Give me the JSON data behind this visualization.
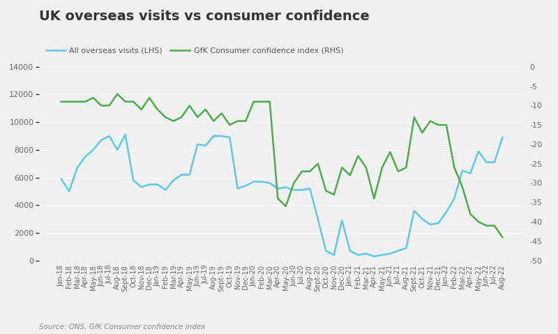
{
  "title": "UK overseas visits vs consumer confidence",
  "source": "Source: ONS, GfK Consumer confidence index",
  "legend_lhs": "All overseas visits (LHS)",
  "legend_rhs": "GfK Consumer confidence index (RHS)",
  "lhs_color": "#5bc8e8",
  "rhs_color": "#4aab4a",
  "background_color": "#f0f0f0",
  "ylim_lhs": [
    0,
    14000
  ],
  "ylim_rhs": [
    -50,
    0
  ],
  "yticks_lhs": [
    0,
    2000,
    4000,
    6000,
    8000,
    10000,
    12000,
    14000
  ],
  "yticks_rhs": [
    -50,
    -45,
    -40,
    -35,
    -30,
    -25,
    -20,
    -15,
    -10,
    -5,
    0
  ],
  "labels": [
    "Jan-18",
    "Feb-18",
    "Mar-18",
    "Apr-18",
    "May-18",
    "Jun-18",
    "Jul-18",
    "Aug-18",
    "Sept-18",
    "Oct-18",
    "Nov-18",
    "Dec-18",
    "Jan-19",
    "Feb-19",
    "Mar-19",
    "Apr-19",
    "May-19",
    "Jun-19",
    "Jul-19",
    "Aug-19",
    "Sept-19",
    "Oct-19",
    "Nov-19",
    "Dec-19",
    "Jan-20",
    "Feb-20",
    "Mar-20",
    "Apr-20",
    "May-20",
    "Jun-20",
    "Jul-20",
    "Aug-20",
    "Sept-20",
    "Oct-20",
    "Nov-20",
    "Dec-20",
    "Jan-21",
    "Feb-21",
    "Mar-21",
    "Apr-21",
    "May-21",
    "Jun-21",
    "Jul-21",
    "Aug-21",
    "Sept-21",
    "Oct-21",
    "Nov-21",
    "Dec-21",
    "Jan-22",
    "Feb-22",
    "Mar-22",
    "Apr-22",
    "May-22",
    "Jun-22",
    "Jul-22",
    "Aug-22"
  ],
  "visits": [
    5900,
    5000,
    6700,
    7500,
    8000,
    8700,
    9000,
    8000,
    9100,
    5800,
    5300,
    5500,
    5500,
    5100,
    5800,
    6200,
    6200,
    8400,
    8300,
    9000,
    9000,
    8900,
    5200,
    5400,
    5700,
    5700,
    5600,
    5200,
    5300,
    5100,
    5100,
    5200,
    3000,
    700,
    400,
    2900,
    700,
    400,
    500,
    300,
    400,
    500,
    700,
    900,
    3600,
    3000,
    2600,
    2700,
    3500,
    4500,
    6500,
    6300,
    7900,
    7100,
    7100,
    8900
  ],
  "confidence": [
    -9,
    -9,
    -9,
    -9,
    -8,
    -10,
    -10,
    -7,
    -9,
    -9,
    -11,
    -8,
    -11,
    -13,
    -14,
    -13,
    -10,
    -13,
    -11,
    -14,
    -12,
    -15,
    -14,
    -14,
    -9,
    -9,
    -9,
    -34,
    -36,
    -30,
    -27,
    -27,
    -25,
    -32,
    -33,
    -26,
    -28,
    -23,
    -26,
    -34,
    -26,
    -22,
    -27,
    -26,
    -13,
    -17,
    -14,
    -15,
    -15,
    -26,
    -31,
    -38,
    -40,
    -41,
    -41,
    -44
  ],
  "title_fontsize": 14,
  "tick_fontsize": 8,
  "label_fontsize": 7,
  "legend_fontsize": 8,
  "source_fontsize": 7.5,
  "linewidth": 1.8
}
